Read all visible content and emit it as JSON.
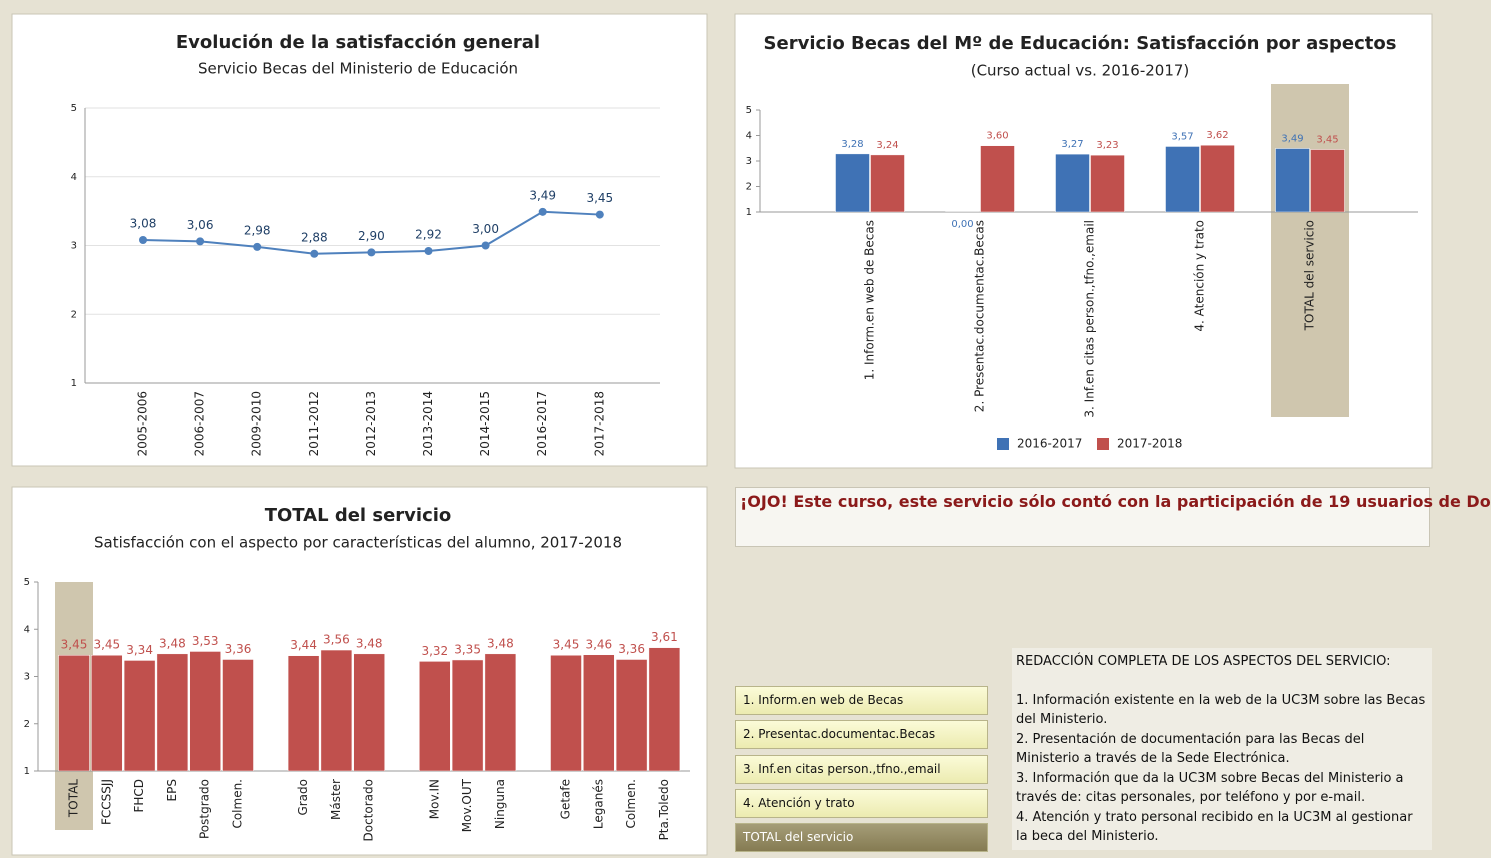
{
  "chart_data": [
    {
      "type": "line",
      "title": "Evolución de la satisfacción general",
      "subtitle": "Servicio Becas del Ministerio de Educación",
      "categories": [
        "2005-2006",
        "2006-2007",
        "2009-2010",
        "2011-2012",
        "2012-2013",
        "2013-2014",
        "2014-2015",
        "2016-2017",
        "2017-2018"
      ],
      "values": [
        3.08,
        3.06,
        2.98,
        2.88,
        2.9,
        2.92,
        3.0,
        3.49,
        3.45
      ],
      "value_labels": [
        "3,08",
        "3,06",
        "2,98",
        "2,88",
        "2,90",
        "2,92",
        "3,00",
        "3,49",
        "3,45"
      ],
      "color": "#4f81bd",
      "ylim": [
        1,
        5
      ],
      "yticks": [
        1,
        2,
        3,
        4,
        5
      ],
      "grid": true
    },
    {
      "type": "bar",
      "title": "Servicio Becas del Mº de Educación: Satisfacción por aspectos",
      "subtitle": "(Curso actual vs. 2016-2017)",
      "categories": [
        "1. Inform.en web de Becas",
        "2. Presentac.documentac.Becas",
        "3. Inf.en citas person.,tfno.,email",
        "4. Atención y trato",
        "TOTAL del servicio"
      ],
      "series": [
        {
          "name": "2016-2017",
          "color": "#3f72b5",
          "values": [
            3.28,
            0,
            3.27,
            3.57,
            3.49
          ],
          "value_labels": [
            "3,28",
            "0,00",
            "3,27",
            "3,57",
            "3,49"
          ]
        },
        {
          "name": "2017-2018",
          "color": "#c0504d",
          "values": [
            3.24,
            3.6,
            3.23,
            3.62,
            3.45
          ],
          "value_labels": [
            "3,24",
            "3,60",
            "3,23",
            "3,62",
            "3,45"
          ]
        }
      ],
      "ylim": [
        1,
        5
      ],
      "yticks": [
        1,
        2,
        3,
        4,
        5
      ],
      "grid": false,
      "legend": "bottom",
      "highlight_index": 4
    },
    {
      "type": "bar",
      "title": "TOTAL del servicio",
      "subtitle": "Satisfacción con el aspecto por características del alumno, 2017-2018",
      "categories": [
        "TOTAL",
        "FCCSSJJ",
        "FHCD",
        "EPS",
        "Postgrado",
        "Colmen.",
        null,
        "Grado",
        "Máster",
        "Doctorado",
        null,
        "Mov.IN",
        "Mov.OUT",
        "Ninguna",
        null,
        "Getafe",
        "Leganés",
        "Colmen.",
        "Pta.Toledo"
      ],
      "series": [
        {
          "color": "#c0504d",
          "values": [
            3.45,
            3.45,
            3.34,
            3.48,
            3.53,
            3.36,
            null,
            3.44,
            3.56,
            3.48,
            null,
            3.32,
            3.35,
            3.48,
            null,
            3.45,
            3.46,
            3.36,
            3.61
          ],
          "value_labels": [
            "3,45",
            "3,45",
            "3,34",
            "3,48",
            "3,53",
            "3,36",
            null,
            "3,44",
            "3,56",
            "3,48",
            null,
            "3,32",
            "3,35",
            "3,48",
            null,
            "3,45",
            "3,46",
            "3,36",
            "3,61"
          ]
        }
      ],
      "ylim": [
        1,
        5
      ],
      "yticks": [
        1,
        2,
        3,
        4,
        5
      ],
      "grid": false,
      "highlight_index": 0
    }
  ],
  "notice": "¡OJO! Este curso, este servicio sólo contó con la participación de 19 usuarios de Do",
  "buttons": [
    "1. Inform.en web de Becas",
    "2. Presentac.documentac.Becas",
    "3. Inf.en citas person.,tfno.,email",
    "4. Atención y trato",
    "TOTAL del servicio"
  ],
  "selected_button": 4,
  "description": {
    "title": "REDACCIÓN COMPLETA DE LOS ASPECTOS DEL SERVICIO:",
    "items": [
      "1. Información existente en la web de la UC3M sobre las Becas del Ministerio.",
      "2. Presentación de documentación para las Becas del Ministerio a través de la Sede Electrónica.",
      "3. Información que da la UC3M sobre Becas del Ministerio a través de: citas personales, por teléfono y por e-mail.",
      "4. Atención y trato personal recibido en la UC3M al gestionar la beca del Ministerio."
    ]
  }
}
